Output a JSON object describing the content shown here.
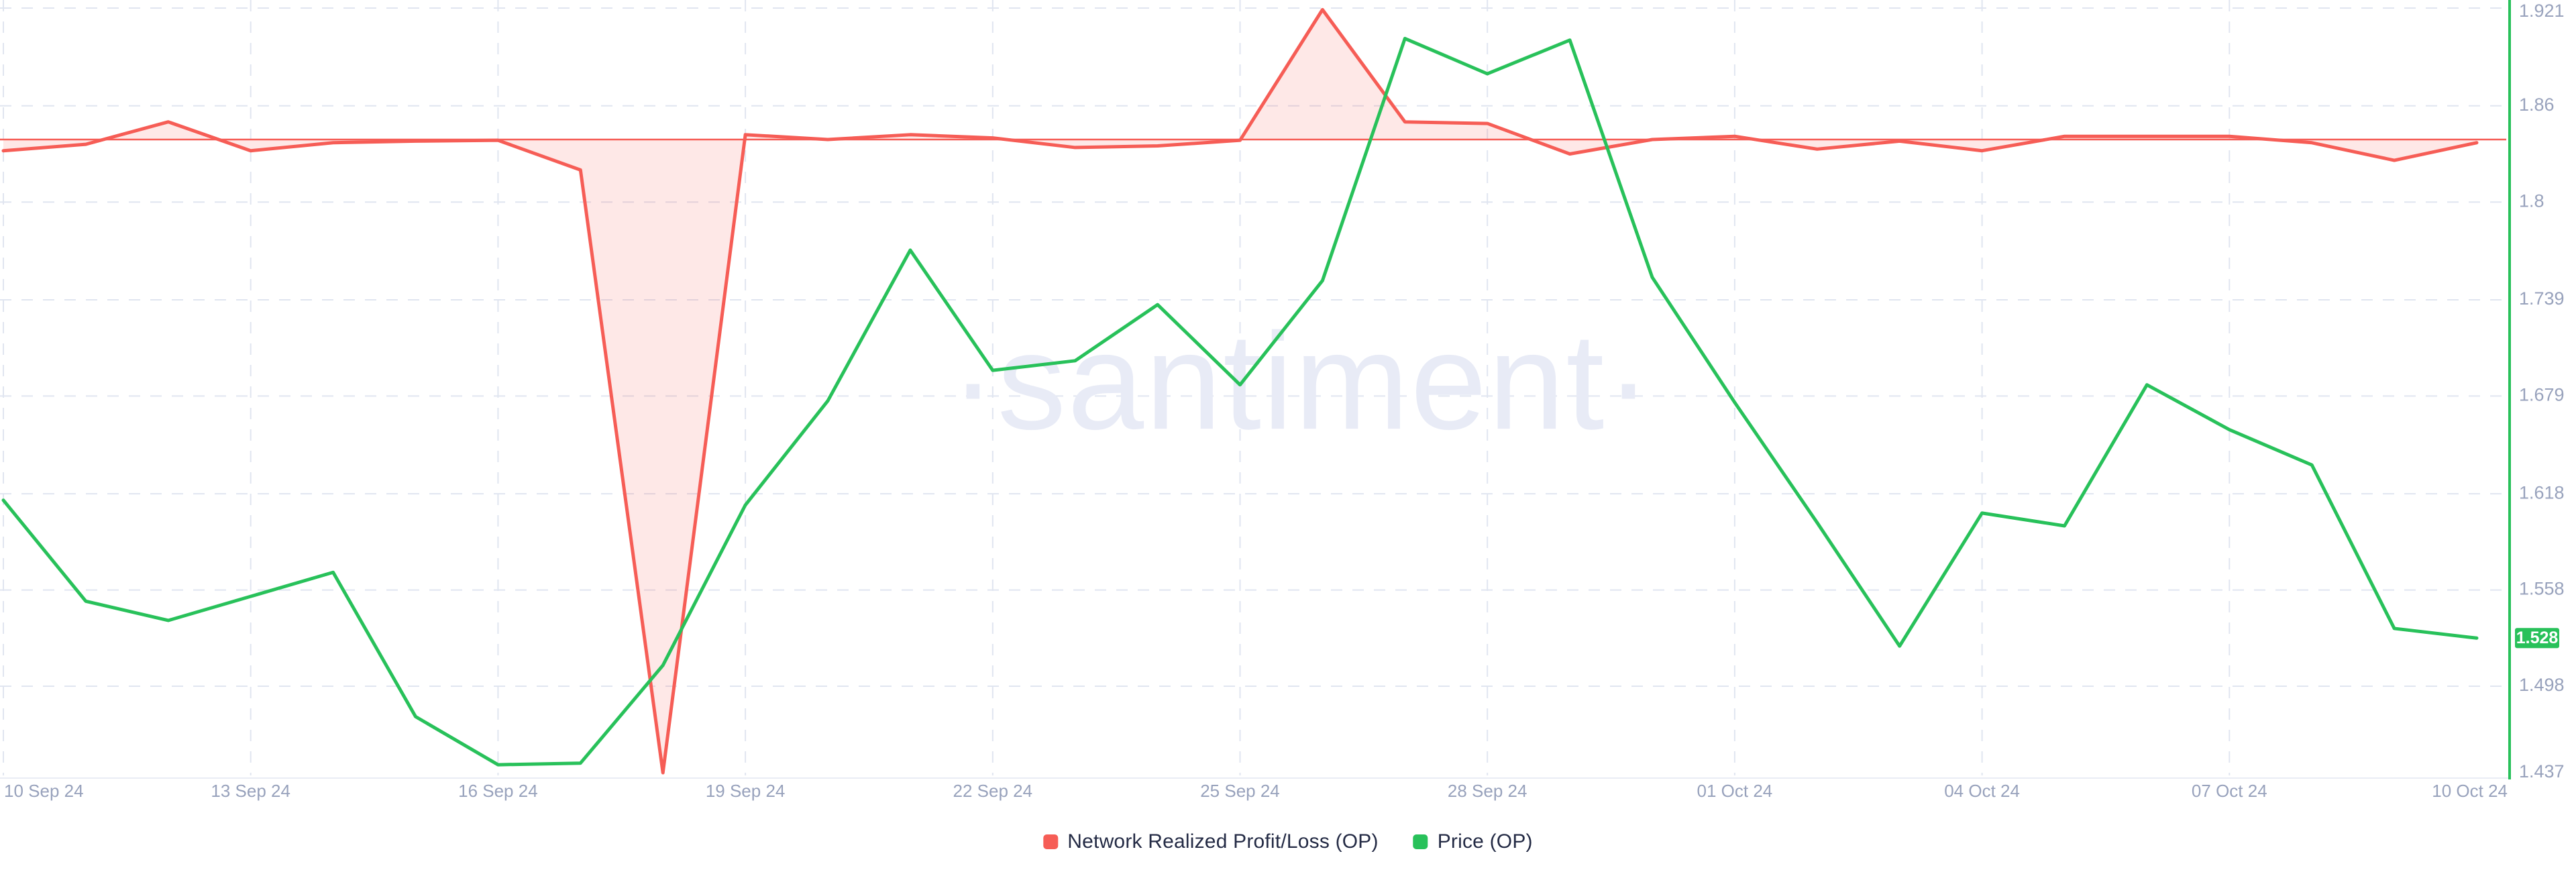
{
  "watermark": "·santiment·",
  "legend": {
    "items": [
      {
        "label": "Network Realized Profit/Loss (OP)",
        "color": "#f65d56"
      },
      {
        "label": "Price (OP)",
        "color": "#28c15a"
      }
    ]
  },
  "price_badge": {
    "value": "1.528",
    "bg": "#28c15a",
    "text_color": "#ffffff"
  },
  "chart_data": {
    "type": "line",
    "title": "",
    "x_tick_labels": [
      "10 Sep 24",
      "13 Sep 24",
      "16 Sep 24",
      "19 Sep 24",
      "22 Sep 24",
      "25 Sep 24",
      "28 Sep 24",
      "01 Oct 24",
      "04 Oct 24",
      "07 Oct 24",
      "10 Oct 24"
    ],
    "x_dates": [
      "10 Sep 24",
      "11 Sep 24",
      "12 Sep 24",
      "13 Sep 24",
      "14 Sep 24",
      "15 Sep 24",
      "16 Sep 24",
      "17 Sep 24",
      "18 Sep 24",
      "19 Sep 24",
      "20 Sep 24",
      "21 Sep 24",
      "22 Sep 24",
      "23 Sep 24",
      "24 Sep 24",
      "25 Sep 24",
      "26 Sep 24",
      "27 Sep 24",
      "28 Sep 24",
      "29 Sep 24",
      "30 Sep 24",
      "01 Oct 24",
      "02 Oct 24",
      "03 Oct 24",
      "04 Oct 24",
      "05 Oct 24",
      "06 Oct 24",
      "07 Oct 24",
      "08 Oct 24",
      "09 Oct 24",
      "10 Oct 24"
    ],
    "y_axis": {
      "side": "right",
      "tick_labels": [
        "1.921",
        "1.86",
        "1.8",
        "1.739",
        "1.679",
        "1.618",
        "1.558",
        "1.498",
        "1.437"
      ],
      "tick_values": [
        1.921,
        1.86,
        1.8,
        1.739,
        1.679,
        1.618,
        1.558,
        1.498,
        1.437
      ],
      "ylim": [
        1.437,
        1.921
      ],
      "label_color": "#98a2bc",
      "axis_line_color": "#28c15a"
    },
    "grid": {
      "dashed": true,
      "color": "#e0e5f0",
      "bottom_border_color": "#e9ecf4"
    },
    "series": [
      {
        "name": "Network Realized Profit/Loss (OP)",
        "color": "#f65d56",
        "fill_color": "rgba(246,93,86,0.14)",
        "baseline_price_scale": 1.839,
        "values_price_scale": [
          1.832,
          1.836,
          1.85,
          1.832,
          1.837,
          1.838,
          1.8385,
          1.82,
          1.444,
          1.842,
          1.839,
          1.842,
          1.84,
          1.834,
          1.835,
          1.8385,
          1.92,
          1.85,
          1.849,
          1.83,
          1.839,
          1.841,
          1.833,
          1.838,
          1.832,
          1.841,
          1.841,
          1.841,
          1.837,
          1.826,
          1.837
        ]
      },
      {
        "name": "Price (OP)",
        "color": "#28c15a",
        "values": [
          1.614,
          1.551,
          1.539,
          1.554,
          1.569,
          1.479,
          1.449,
          1.45,
          1.511,
          1.611,
          1.676,
          1.77,
          1.695,
          1.701,
          1.736,
          1.686,
          1.751,
          1.902,
          1.88,
          1.901,
          1.753,
          1.675,
          1.6,
          1.523,
          1.606,
          1.598,
          1.686,
          1.658,
          1.636,
          1.534,
          1.528
        ]
      }
    ],
    "last_price": 1.528
  }
}
